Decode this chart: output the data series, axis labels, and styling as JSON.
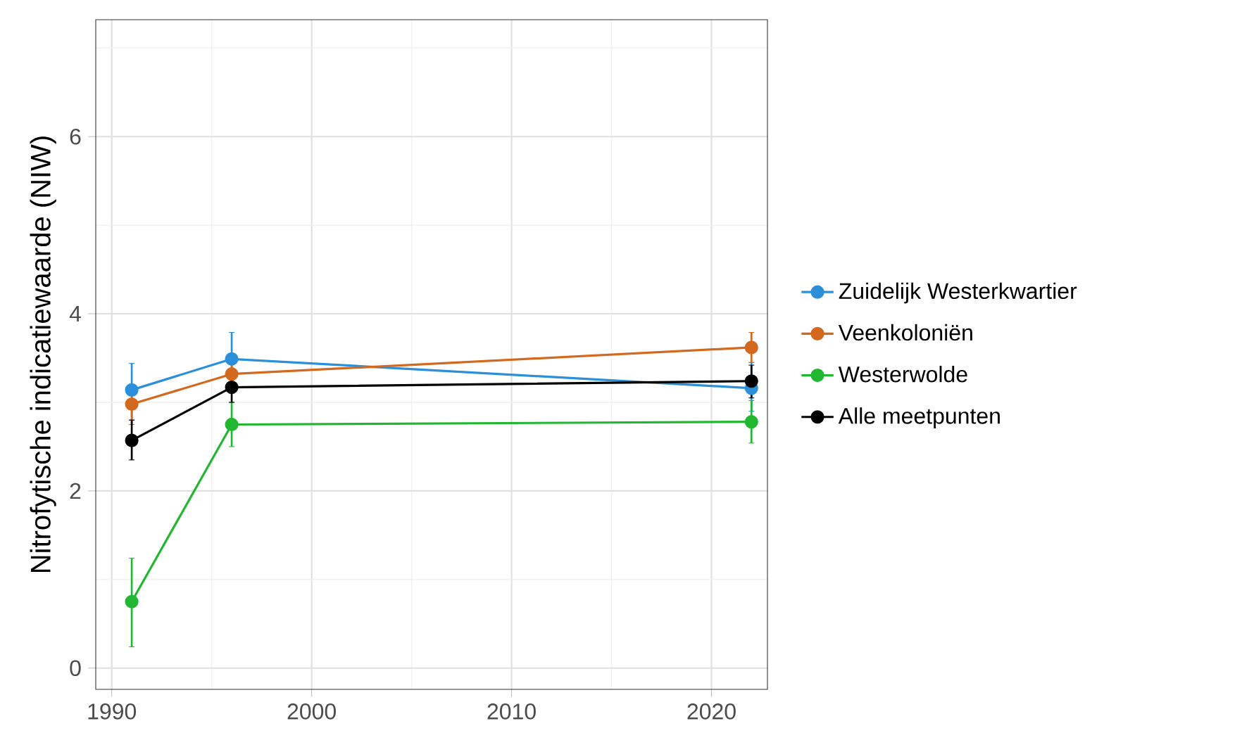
{
  "chart_data": {
    "type": "line",
    "ylabel": "Nitrofytische indicatiewaarde (NIW)",
    "x": [
      1991,
      1996,
      2022
    ],
    "xlim": [
      1989.2,
      2022.8
    ],
    "ylim": [
      -0.24,
      7.32
    ],
    "xticks": [
      1990,
      2000,
      2010,
      2020
    ],
    "yticks": [
      0,
      2,
      4,
      6
    ],
    "grid": true,
    "legend": "right",
    "marker": "circle",
    "line_style": "solid",
    "series": [
      {
        "name": "Zuidelijk Westerkwartier",
        "color": "#2b8fd9",
        "values": [
          3.14,
          3.49,
          3.16
        ],
        "errors": [
          [
            2.8,
            3.44
          ],
          [
            3.2,
            3.79
          ],
          [
            2.9,
            3.45
          ]
        ]
      },
      {
        "name": "Veenkoloniën",
        "color": "#d2691e",
        "values": [
          2.98,
          3.32,
          3.62
        ],
        "errors": [
          [
            2.75,
            3.2
          ],
          [
            3.1,
            3.55
          ],
          [
            3.45,
            3.79
          ]
        ]
      },
      {
        "name": "Westerwolde",
        "color": "#22b731",
        "values": [
          0.75,
          2.75,
          2.78
        ],
        "errors": [
          [
            0.24,
            1.24
          ],
          [
            2.5,
            3.0
          ],
          [
            2.54,
            3.02
          ]
        ]
      },
      {
        "name": "Alle meetpunten",
        "color": "#000000",
        "values": [
          2.57,
          3.17,
          3.24
        ],
        "errors": [
          [
            2.35,
            2.8
          ],
          [
            3.0,
            3.35
          ],
          [
            3.05,
            3.42
          ]
        ]
      }
    ]
  }
}
